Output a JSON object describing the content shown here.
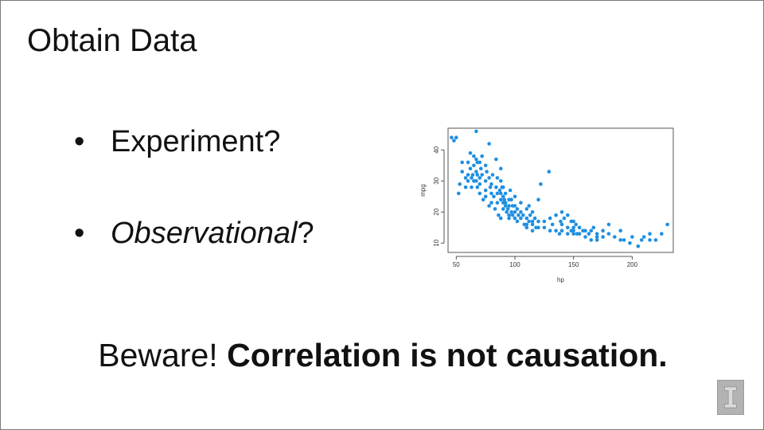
{
  "slide": {
    "title": "Obtain Data",
    "bullets": [
      {
        "marker": "•",
        "text": "Experiment?"
      },
      {
        "marker": "•",
        "text_em": "Observational",
        "text_rest": "?"
      }
    ],
    "beware": {
      "lead": "Beware!",
      "strong": "Correlation is not causation."
    }
  },
  "chart_data": {
    "type": "scatter",
    "xlabel": "hp",
    "ylabel": "mpg",
    "xlim": [
      43,
      235
    ],
    "ylim": [
      7,
      47
    ],
    "xticks": [
      50,
      100,
      150,
      200
    ],
    "yticks": [
      10,
      20,
      30,
      40
    ],
    "grid": false,
    "point_color": "#1f8fe0",
    "x": [
      46,
      48,
      50,
      52,
      53,
      55,
      55,
      58,
      58,
      60,
      60,
      60,
      62,
      62,
      63,
      63,
      64,
      65,
      65,
      65,
      67,
      67,
      67,
      67,
      68,
      68,
      68,
      70,
      70,
      70,
      70,
      71,
      72,
      72,
      73,
      75,
      75,
      75,
      75,
      76,
      78,
      78,
      78,
      79,
      80,
      80,
      80,
      81,
      82,
      83,
      84,
      84,
      85,
      85,
      85,
      86,
      87,
      88,
      88,
      88,
      88,
      88,
      89,
      90,
      90,
      90,
      90,
      91,
      92,
      92,
      92,
      93,
      94,
      95,
      95,
      95,
      95,
      96,
      97,
      97,
      98,
      98,
      100,
      100,
      100,
      100,
      102,
      102,
      103,
      105,
      105,
      105,
      107,
      108,
      110,
      110,
      110,
      110,
      112,
      112,
      113,
      115,
      115,
      115,
      115,
      117,
      118,
      120,
      120,
      120,
      122,
      125,
      125,
      129,
      130,
      130,
      132,
      135,
      135,
      138,
      139,
      140,
      140,
      140,
      142,
      145,
      145,
      145,
      148,
      148,
      150,
      150,
      150,
      150,
      152,
      153,
      155,
      155,
      158,
      160,
      160,
      163,
      165,
      165,
      167,
      170,
      170,
      170,
      175,
      175,
      180,
      180,
      185,
      190,
      190,
      193,
      198,
      200,
      205,
      208,
      210,
      215,
      215,
      220,
      225,
      230
    ],
    "y": [
      44,
      43,
      44,
      26,
      29,
      33,
      36,
      28,
      31,
      36,
      32,
      30,
      39,
      34,
      31,
      28,
      32,
      38,
      35,
      30,
      46,
      37,
      33,
      30,
      36,
      32,
      28,
      36,
      31,
      29,
      26,
      34,
      38,
      32,
      24,
      35,
      30,
      27,
      25,
      33,
      42,
      31,
      22,
      28,
      29,
      26,
      23,
      32,
      25,
      21,
      37,
      28,
      31,
      26,
      23,
      19,
      27,
      34,
      30,
      26,
      24,
      18,
      28,
      25,
      23,
      21,
      28,
      24,
      22,
      26,
      23,
      20,
      21,
      24,
      22,
      19,
      18,
      27,
      24,
      20,
      22,
      19,
      25,
      22,
      20,
      18,
      21,
      17,
      19,
      23,
      20,
      18,
      19,
      16,
      21,
      18,
      16,
      15,
      22,
      17,
      19,
      20,
      17,
      16,
      14,
      18,
      15,
      24,
      17,
      15,
      29,
      17,
      15,
      33,
      18,
      14,
      16,
      19,
      14,
      13,
      17,
      20,
      16,
      14,
      18,
      19,
      15,
      13,
      17,
      14,
      14,
      17,
      15,
      13,
      16,
      13,
      15,
      13,
      14,
      12,
      14,
      13,
      14,
      11,
      15,
      13,
      12,
      11,
      14,
      12,
      13,
      16,
      12,
      11,
      14,
      11,
      10,
      12,
      9,
      11,
      12,
      11,
      13,
      11,
      13,
      16
    ]
  }
}
